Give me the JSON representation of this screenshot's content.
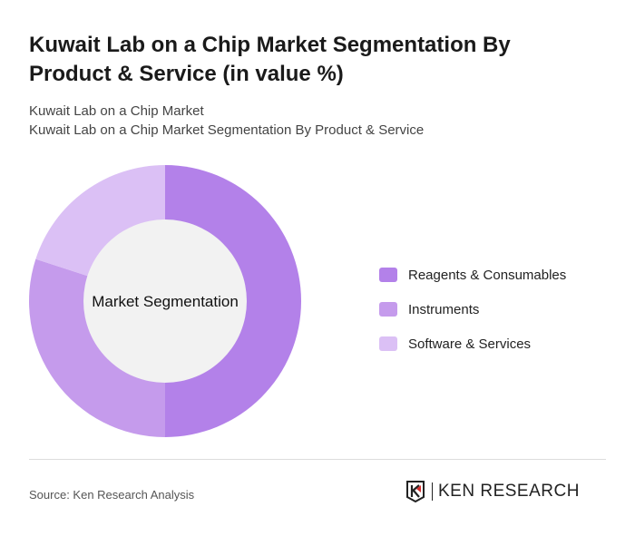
{
  "title": "Kuwait Lab on a Chip Market Segmentation By Product & Service (in value %)",
  "subtitle1": "Kuwait Lab on a Chip Market",
  "subtitle2": "Kuwait Lab on a Chip Market Segmentation By Product & Service",
  "source": "Source: Ken Research Analysis",
  "logo_text": "KEN RESEARCH",
  "chart_data": {
    "type": "pie",
    "variant": "donut",
    "center_label": "Market Segmentation",
    "categories": [
      "Reagents & Consumables",
      "Instruments",
      "Software & Services"
    ],
    "values": [
      50,
      30,
      20
    ],
    "colors": [
      "#b381e9",
      "#c59bec",
      "#dbc0f5"
    ],
    "legend_position": "right"
  }
}
